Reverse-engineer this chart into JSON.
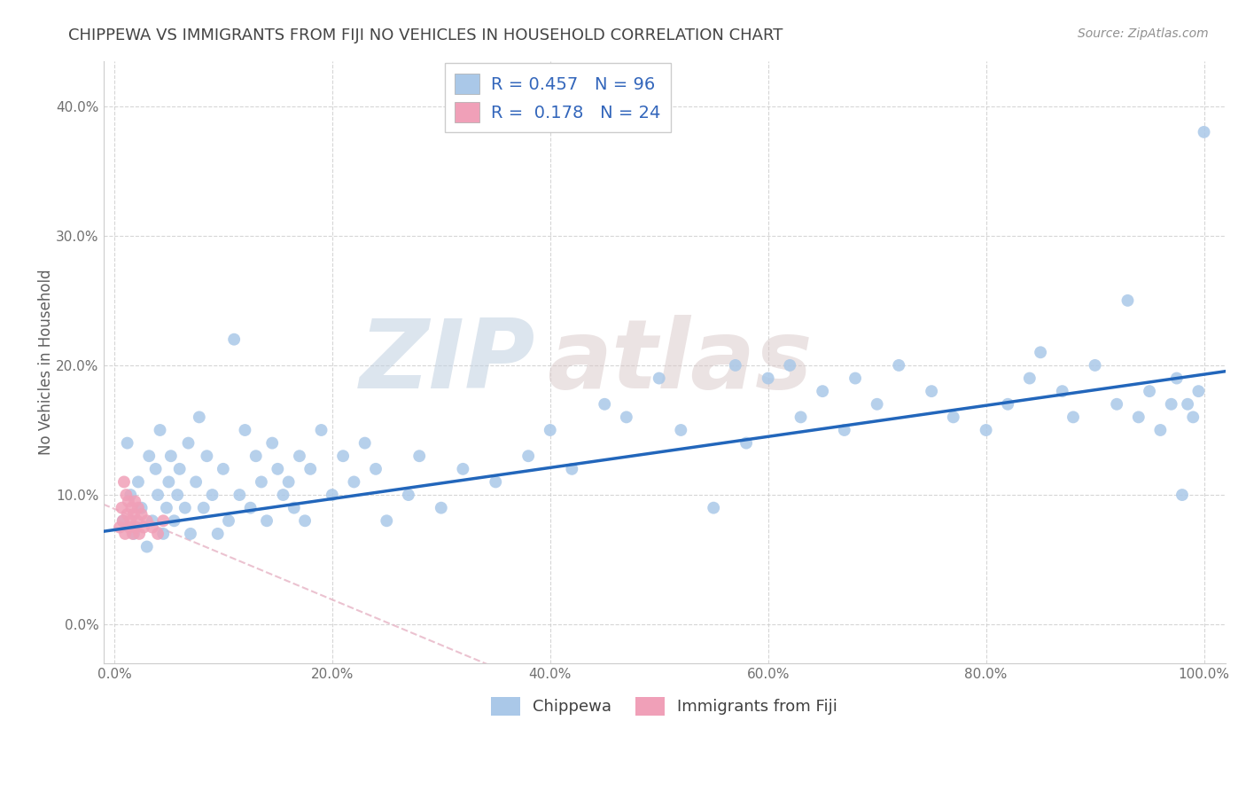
{
  "title": "CHIPPEWA VS IMMIGRANTS FROM FIJI NO VEHICLES IN HOUSEHOLD CORRELATION CHART",
  "source_text": "Source: ZipAtlas.com",
  "ylabel": "No Vehicles in Household",
  "xlim": [
    -0.01,
    1.02
  ],
  "ylim": [
    -0.03,
    0.435
  ],
  "x_ticks": [
    0.0,
    0.2,
    0.4,
    0.6,
    0.8,
    1.0
  ],
  "x_tick_labels": [
    "0.0%",
    "20.0%",
    "40.0%",
    "60.0%",
    "80.0%",
    "100.0%"
  ],
  "y_ticks": [
    0.0,
    0.1,
    0.2,
    0.3,
    0.4
  ],
  "y_tick_labels": [
    "0.0%",
    "10.0%",
    "20.0%",
    "30.0%",
    "40.0%"
  ],
  "r1": 0.457,
  "n1": 96,
  "r2": 0.178,
  "n2": 24,
  "blue_color": "#aac8e8",
  "pink_color": "#f0a0b8",
  "line_blue": "#2266bb",
  "line_pink": "#e8b8c8",
  "title_color": "#444444",
  "source_color": "#909090",
  "grid_color": "#cccccc",
  "tick_color": "#707070",
  "legend_label_color": "#3366bb",
  "chippewa_x": [
    0.008,
    0.012,
    0.015,
    0.018,
    0.022,
    0.025,
    0.03,
    0.032,
    0.035,
    0.038,
    0.04,
    0.042,
    0.045,
    0.048,
    0.05,
    0.052,
    0.055,
    0.058,
    0.06,
    0.065,
    0.068,
    0.07,
    0.075,
    0.078,
    0.082,
    0.085,
    0.09,
    0.095,
    0.1,
    0.105,
    0.11,
    0.115,
    0.12,
    0.125,
    0.13,
    0.135,
    0.14,
    0.145,
    0.15,
    0.155,
    0.16,
    0.165,
    0.17,
    0.175,
    0.18,
    0.19,
    0.2,
    0.21,
    0.22,
    0.23,
    0.24,
    0.25,
    0.27,
    0.28,
    0.3,
    0.32,
    0.35,
    0.38,
    0.4,
    0.42,
    0.45,
    0.47,
    0.5,
    0.52,
    0.55,
    0.57,
    0.58,
    0.6,
    0.62,
    0.63,
    0.65,
    0.67,
    0.68,
    0.7,
    0.72,
    0.75,
    0.77,
    0.8,
    0.82,
    0.84,
    0.85,
    0.87,
    0.88,
    0.9,
    0.92,
    0.93,
    0.94,
    0.95,
    0.96,
    0.97,
    0.975,
    0.98,
    0.985,
    0.99,
    0.995,
    1.0
  ],
  "chippewa_y": [
    0.08,
    0.14,
    0.1,
    0.07,
    0.11,
    0.09,
    0.06,
    0.13,
    0.08,
    0.12,
    0.1,
    0.15,
    0.07,
    0.09,
    0.11,
    0.13,
    0.08,
    0.1,
    0.12,
    0.09,
    0.14,
    0.07,
    0.11,
    0.16,
    0.09,
    0.13,
    0.1,
    0.07,
    0.12,
    0.08,
    0.22,
    0.1,
    0.15,
    0.09,
    0.13,
    0.11,
    0.08,
    0.14,
    0.12,
    0.1,
    0.11,
    0.09,
    0.13,
    0.08,
    0.12,
    0.15,
    0.1,
    0.13,
    0.11,
    0.14,
    0.12,
    0.08,
    0.1,
    0.13,
    0.09,
    0.12,
    0.11,
    0.13,
    0.15,
    0.12,
    0.17,
    0.16,
    0.19,
    0.15,
    0.09,
    0.2,
    0.14,
    0.19,
    0.2,
    0.16,
    0.18,
    0.15,
    0.19,
    0.17,
    0.2,
    0.18,
    0.16,
    0.15,
    0.17,
    0.19,
    0.21,
    0.18,
    0.16,
    0.2,
    0.17,
    0.25,
    0.16,
    0.18,
    0.15,
    0.17,
    0.19,
    0.1,
    0.17,
    0.16,
    0.18,
    0.38
  ],
  "fiji_x": [
    0.005,
    0.007,
    0.008,
    0.009,
    0.01,
    0.011,
    0.012,
    0.013,
    0.014,
    0.015,
    0.016,
    0.017,
    0.018,
    0.019,
    0.02,
    0.021,
    0.022,
    0.023,
    0.025,
    0.027,
    0.03,
    0.035,
    0.04,
    0.045
  ],
  "fiji_y": [
    0.075,
    0.09,
    0.08,
    0.11,
    0.07,
    0.1,
    0.085,
    0.095,
    0.075,
    0.08,
    0.09,
    0.07,
    0.085,
    0.095,
    0.075,
    0.08,
    0.09,
    0.07,
    0.085,
    0.075,
    0.08,
    0.075,
    0.07,
    0.08
  ]
}
